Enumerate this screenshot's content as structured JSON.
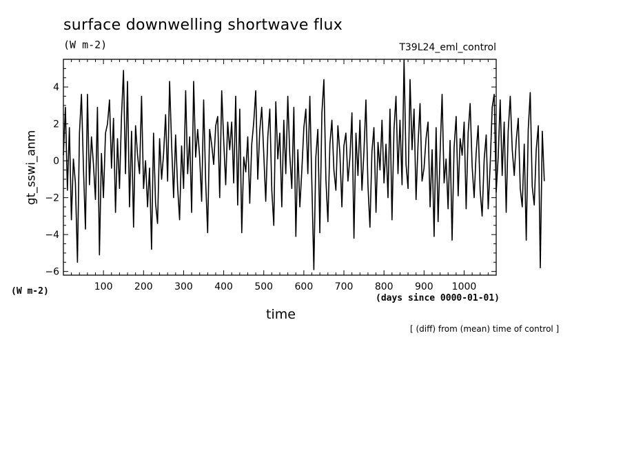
{
  "chart_data": {
    "type": "line",
    "title": "surface downwelling shortwave flux",
    "subtitle": "(W m-2)",
    "run_label": "T39L24_eml_control",
    "ylabel": "gt_sswi_anm",
    "ylabel_units": "(W m-2)",
    "xlabel": "time",
    "xlabel_units": "(days since 0000-01-01)",
    "note": "[ (diff) from (mean) time of control ]",
    "xlim": [
      0,
      1080
    ],
    "ylim": [
      -6.2,
      5.5
    ],
    "x_ticks": [
      100,
      200,
      300,
      400,
      500,
      600,
      700,
      800,
      900,
      1000
    ],
    "y_ticks": [
      -6,
      -4,
      -2,
      0,
      2,
      4
    ],
    "grid": false,
    "series": [
      {
        "color": "#000000",
        "x_start": 0,
        "x_step": 5,
        "values": [
          0.3,
          2.9,
          -1.6,
          1.8,
          -3.2,
          0.1,
          -1.2,
          -5.5,
          1.5,
          3.6,
          -0.4,
          -3.7,
          3.6,
          -1.3,
          1.3,
          -0.2,
          -2.1,
          2.9,
          -5.1,
          0.4,
          -2.0,
          1.5,
          2.0,
          3.3,
          -0.4,
          2.3,
          -2.8,
          1.2,
          -1.5,
          2.4,
          4.9,
          -0.7,
          4.3,
          -2.5,
          1.6,
          -3.6,
          1.9,
          0.3,
          -0.7,
          3.5,
          -1.5,
          0.0,
          -2.5,
          -0.4,
          -4.8,
          1.5,
          -2.3,
          -3.4,
          1.2,
          -1.0,
          0.4,
          2.5,
          -1.1,
          4.3,
          0.9,
          -2.0,
          1.4,
          -1.4,
          -3.2,
          0.8,
          -1.5,
          3.8,
          -0.7,
          1.3,
          -2.8,
          4.3,
          0.2,
          1.7,
          0.2,
          -2.2,
          3.3,
          -1.1,
          -3.9,
          1.7,
          0.9,
          -0.2,
          1.9,
          2.4,
          -2.0,
          3.8,
          1.1,
          -1.3,
          2.1,
          0.6,
          2.1,
          -1.2,
          3.5,
          -2.4,
          2.8,
          -3.9,
          0.2,
          -0.6,
          1.3,
          -2.3,
          0.9,
          2.1,
          3.8,
          -1.0,
          1.6,
          2.9,
          0.4,
          -2.2,
          1.3,
          2.8,
          -1.6,
          -3.5,
          3.2,
          0.1,
          1.5,
          -2.5,
          2.2,
          -0.7,
          3.5,
          0.3,
          -1.5,
          2.9,
          -4.1,
          0.6,
          -2.5,
          -0.5,
          1.8,
          2.8,
          -0.7,
          3.5,
          -1.2,
          -5.9,
          0.2,
          1.7,
          -3.9,
          2.6,
          4.4,
          -1.0,
          -3.3,
          0.9,
          2.2,
          -0.5,
          -1.6,
          1.9,
          0.4,
          -2.5,
          0.8,
          1.5,
          -1.1,
          0.2,
          2.6,
          -4.2,
          1.5,
          -0.8,
          2.2,
          -1.6,
          0.5,
          3.3,
          -1.3,
          -3.6,
          0.5,
          1.8,
          -2.8,
          1.0,
          -0.5,
          2.2,
          -1.2,
          0.9,
          -2.0,
          2.8,
          -3.2,
          1.7,
          3.5,
          -0.7,
          2.2,
          -1.3,
          5.5,
          -0.2,
          -1.5,
          4.4,
          0.6,
          2.8,
          -2.1,
          0.9,
          3.1,
          -1.1,
          -0.4,
          1.2,
          2.1,
          -2.5,
          0.6,
          -4.1,
          1.8,
          -3.3,
          0.4,
          3.6,
          -1.2,
          0.1,
          -2.6,
          1.1,
          -4.3,
          0.7,
          2.4,
          -1.9,
          1.2,
          0.3,
          2.1,
          -2.6,
          1.5,
          3.1,
          -0.3,
          -2.0,
          0.4,
          1.9,
          -1.6,
          -3.0,
          0.1,
          1.4,
          -2.6,
          -0.2,
          2.9,
          3.6,
          -1.7,
          0.2,
          3.3,
          -0.8,
          2.1,
          -2.8,
          1.6,
          3.5,
          0.6,
          -0.8,
          1.1,
          2.3,
          -1.5,
          -2.5,
          0.9,
          -4.3,
          1.7,
          3.7,
          -1.4,
          -2.4,
          0.6,
          1.9,
          -5.8,
          1.6,
          -1.1
        ]
      }
    ]
  }
}
